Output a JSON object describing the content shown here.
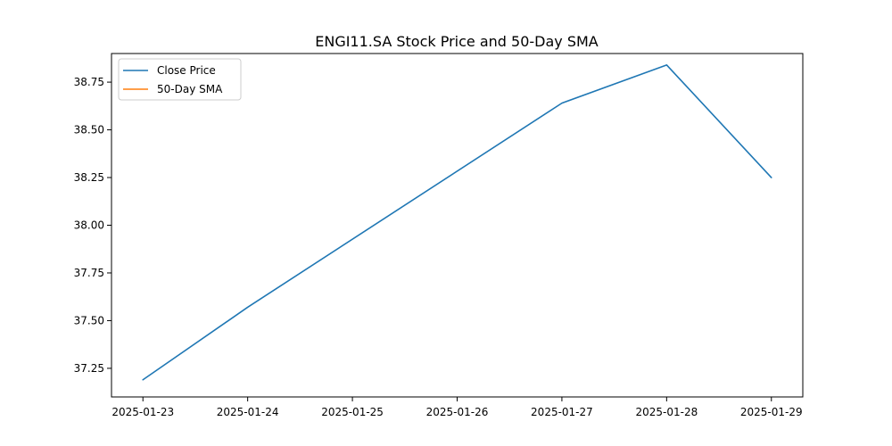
{
  "chart_data": {
    "type": "line",
    "title": "ENGI11.SA Stock Price and 50-Day SMA",
    "xlabel": "",
    "ylabel": "",
    "x": [
      "2025-01-23",
      "2025-01-24",
      "2025-01-25",
      "2025-01-26",
      "2025-01-27",
      "2025-01-28",
      "2025-01-29"
    ],
    "x_ticks": [
      "2025-01-23",
      "2025-01-24",
      "2025-01-25",
      "2025-01-26",
      "2025-01-27",
      "2025-01-28",
      "2025-01-29"
    ],
    "y_ticks": [
      "37.25",
      "37.50",
      "37.75",
      "38.00",
      "38.25",
      "38.50",
      "38.75"
    ],
    "ylim": [
      37.1,
      38.9
    ],
    "grid": false,
    "legend_position": "top-left",
    "series": [
      {
        "name": "Close Price",
        "color": "#1f77b4",
        "points": [
          {
            "x": "2025-01-23",
            "y": 37.19
          },
          {
            "x": "2025-01-24",
            "y": 37.57
          },
          {
            "x": "2025-01-27",
            "y": 38.64
          },
          {
            "x": "2025-01-28",
            "y": 38.84
          },
          {
            "x": "2025-01-29",
            "y": 38.25
          }
        ]
      },
      {
        "name": "50-Day SMA",
        "color": "#ff7f0e",
        "points": []
      }
    ]
  }
}
